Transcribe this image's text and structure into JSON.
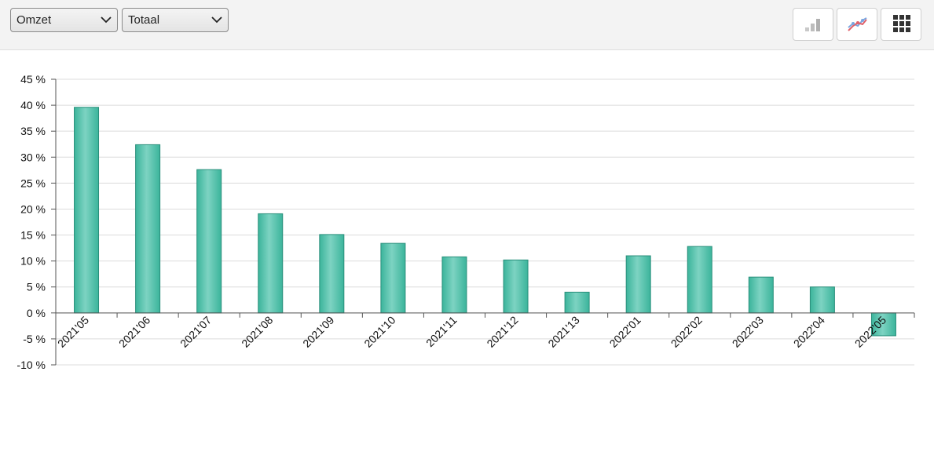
{
  "toolbar": {
    "metric_select": {
      "value": "Omzet"
    },
    "scope_select": {
      "value": "Totaal"
    },
    "buttons": [
      {
        "name": "bar-chart-button",
        "icon": "bar-chart-icon",
        "active": false
      },
      {
        "name": "line-chart-button",
        "icon": "line-chart-icon",
        "active": false
      },
      {
        "name": "table-view-button",
        "icon": "grid-icon",
        "active": false
      }
    ]
  },
  "colors": {
    "bar_fill_light": "#7dd3c2",
    "bar_fill_dark": "#3bb49b",
    "bar_stroke": "#2a8f7b",
    "gridline": "#dcdcdc",
    "axis": "#555555"
  },
  "chart_data": {
    "type": "bar",
    "title": "",
    "xlabel": "",
    "ylabel": "",
    "ylim": [
      -10,
      45
    ],
    "yticks": [
      45,
      40,
      35,
      30,
      25,
      20,
      15,
      10,
      5,
      0,
      -5,
      -10
    ],
    "ytick_labels": [
      "45 %",
      "40 %",
      "35 %",
      "30 %",
      "25 %",
      "20 %",
      "15 %",
      "10 %",
      "5 %",
      "0 %",
      "-5 %",
      "-10 %"
    ],
    "grid": true,
    "categories": [
      "2021'05",
      "2021'06",
      "2021'07",
      "2021'08",
      "2021'09",
      "2021'10",
      "2021'11",
      "2021'12",
      "2021'13",
      "2022'01",
      "2022'02",
      "2022'03",
      "2022'04",
      "2022'05"
    ],
    "values": [
      39.6,
      32.4,
      27.6,
      19.1,
      15.1,
      13.4,
      10.8,
      10.2,
      4.0,
      11.0,
      12.8,
      6.9,
      5.0,
      -4.4
    ]
  }
}
